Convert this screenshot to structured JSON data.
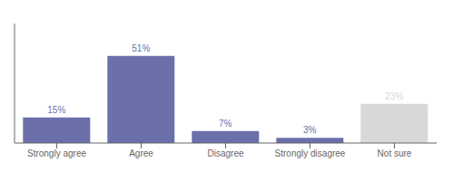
{
  "chart_data": {
    "type": "bar",
    "categories": [
      "Strongly agree",
      "Agree",
      "Disagree",
      "Strongly disagree",
      "Not sure"
    ],
    "values": [
      15,
      51,
      7,
      3,
      23
    ],
    "value_labels": [
      "15%",
      "51%",
      "7%",
      "3%",
      "23%"
    ],
    "colors": [
      "#6b6faa",
      "#6b6faa",
      "#6b6faa",
      "#6b6faa",
      "#d8d8d8"
    ],
    "ylim": [
      0,
      70
    ],
    "data_labels": true,
    "tick_labels": "x"
  }
}
